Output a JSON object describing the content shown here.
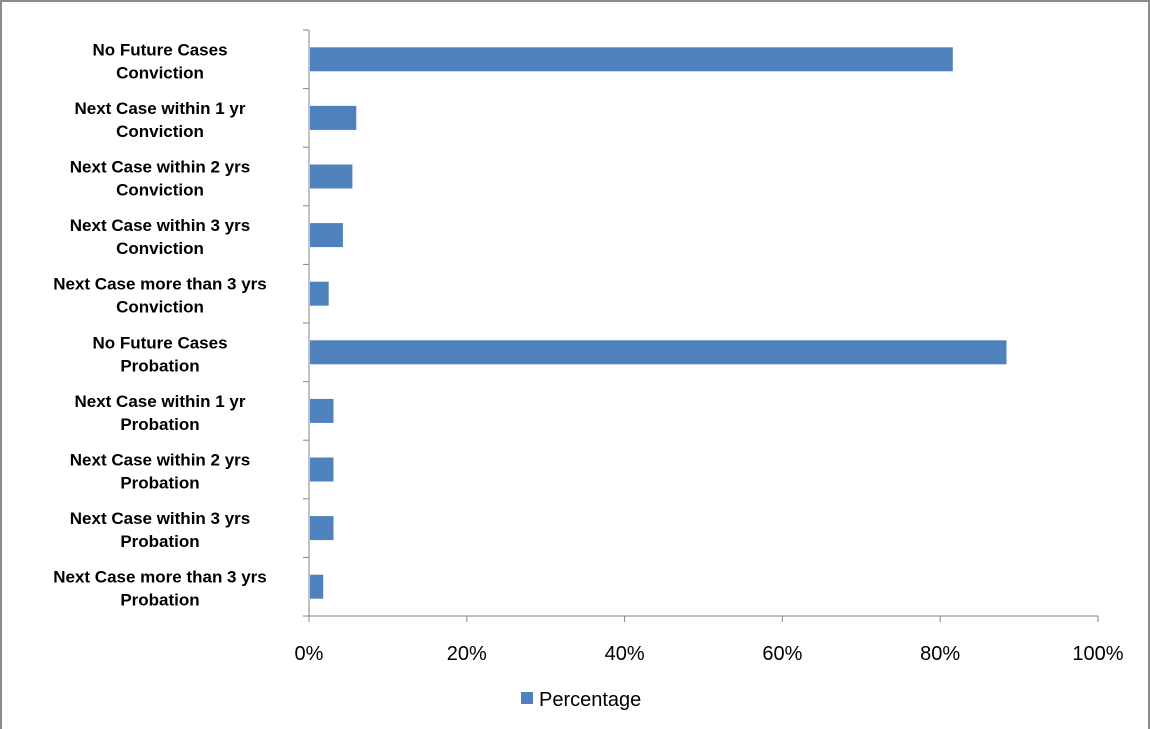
{
  "chart_data": {
    "type": "bar",
    "orientation": "horizontal",
    "categories": [
      [
        "No Future Cases",
        "Conviction"
      ],
      [
        "Next Case within 1 yr",
        "Conviction"
      ],
      [
        "Next Case within 2 yrs",
        "Conviction"
      ],
      [
        "Next Case within 3 yrs",
        "Conviction"
      ],
      [
        "Next Case more than 3 yrs",
        "Conviction"
      ],
      [
        "No Future Cases",
        "Probation"
      ],
      [
        "Next Case within 1 yr",
        "Probation"
      ],
      [
        "Next Case within 2 yrs",
        "Probation"
      ],
      [
        "Next Case within 3 yrs",
        "Probation"
      ],
      [
        "Next Case more than 3 yrs",
        "Probation"
      ]
    ],
    "series": [
      {
        "name": "Percentage",
        "color": "#4f81bd",
        "values": [
          0.816,
          0.06,
          0.055,
          0.043,
          0.025,
          0.884,
          0.031,
          0.031,
          0.031,
          0.018
        ]
      }
    ],
    "xlim": [
      0,
      1
    ],
    "xticks": [
      0,
      0.2,
      0.4,
      0.6,
      0.8,
      1.0
    ],
    "xtick_labels": [
      "0%",
      "20%",
      "40%",
      "60%",
      "80%",
      "100%"
    ],
    "legend": {
      "position": "bottom",
      "label": "Percentage"
    },
    "grid": false,
    "title": "",
    "xlabel": "",
    "ylabel": ""
  }
}
